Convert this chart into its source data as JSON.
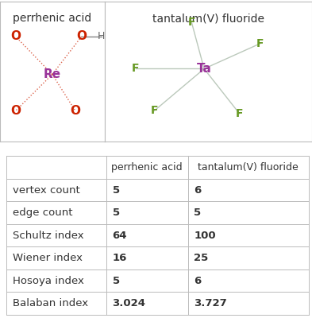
{
  "col1_header": "perrhenic acid",
  "col2_header": "tantalum(V) fluoride",
  "rows": [
    {
      "label": "vertex count",
      "val1": "5",
      "val2": "6"
    },
    {
      "label": "edge count",
      "val1": "5",
      "val2": "5"
    },
    {
      "label": "Schultz index",
      "val1": "64",
      "val2": "100"
    },
    {
      "label": "Wiener index",
      "val1": "16",
      "val2": "25"
    },
    {
      "label": "Hosoya index",
      "val1": "5",
      "val2": "6"
    },
    {
      "label": "Balaban index",
      "val1": "3.024",
      "val2": "3.727"
    }
  ],
  "bg_color": "#ffffff",
  "border_color": "#bbbbbb",
  "text_color": "#333333",
  "header_fontsize": 10,
  "cell_fontsize": 10,
  "re_color": "#993399",
  "o_color": "#cc2200",
  "h_color": "#666666",
  "ta_color": "#993399",
  "f_color": "#669922",
  "bond_color_re": "#cc8888",
  "bond_color_ta": "#aabbaa",
  "mol_header_fontsize": 10
}
